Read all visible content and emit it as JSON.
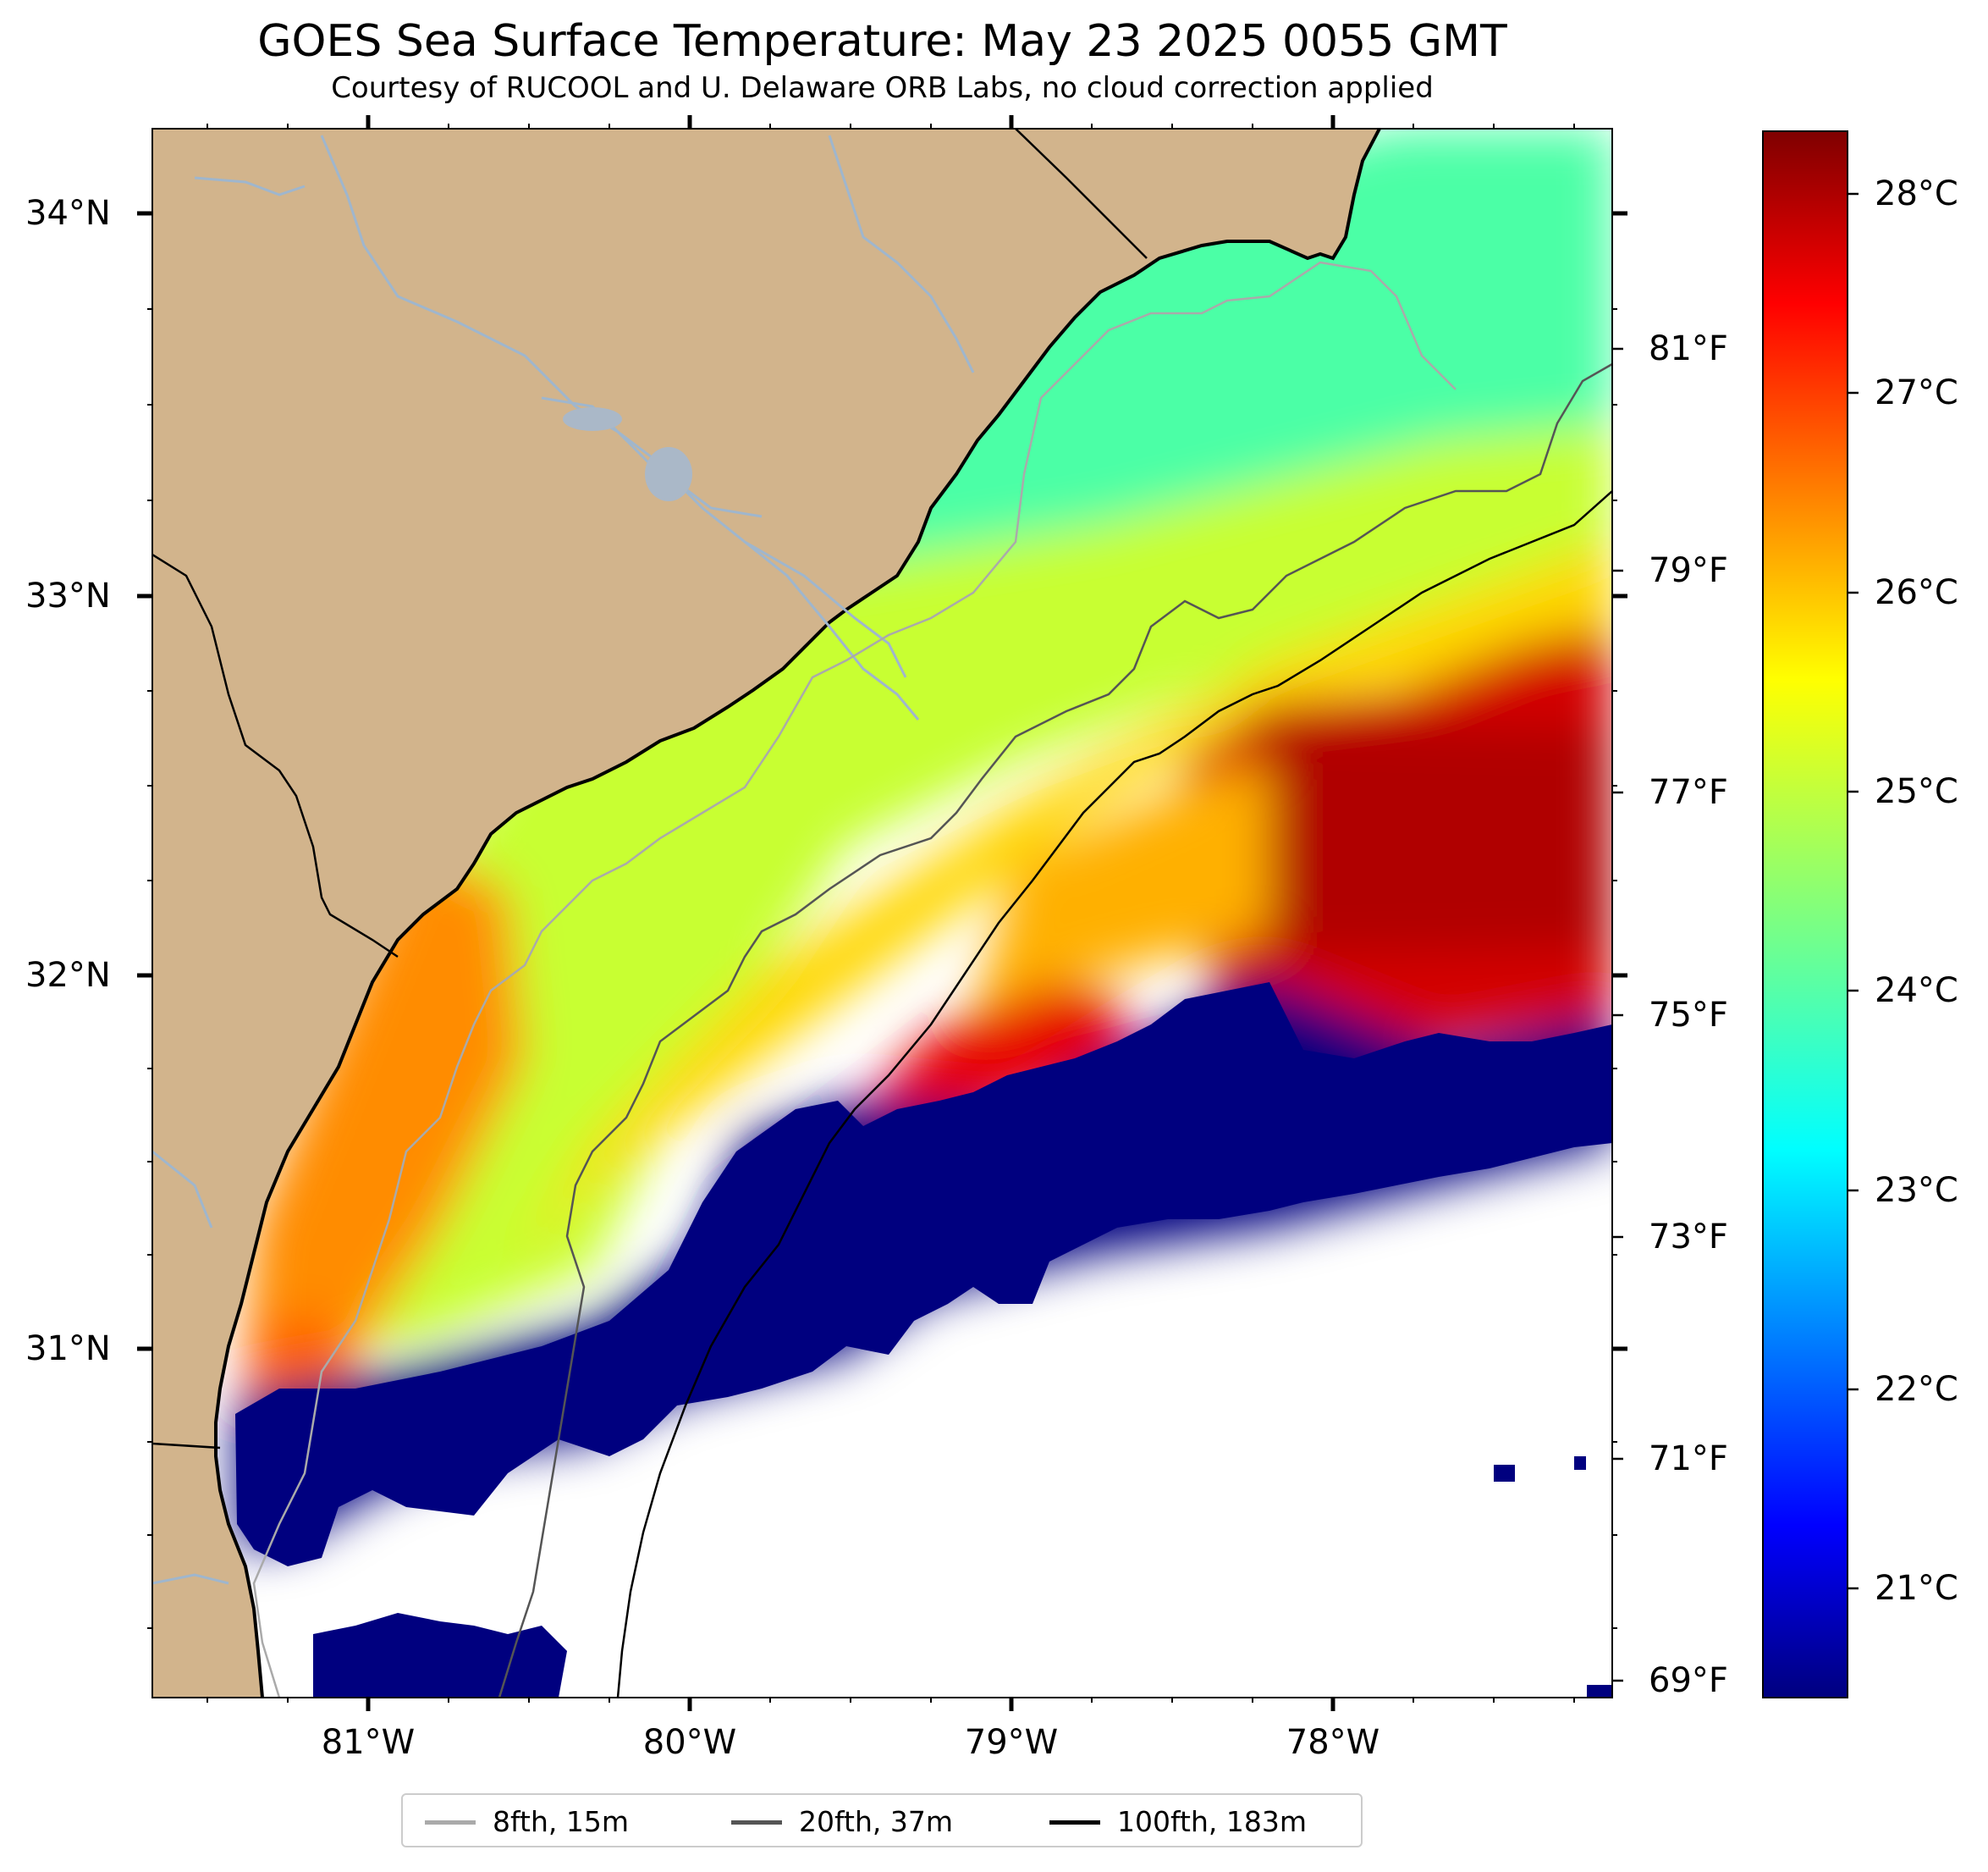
{
  "title": "GOES Sea Surface Temperature: May 23 2025 0055 GMT",
  "subtitle": "Courtesy of RUCOOL and U. Delaware ORB Labs, no cloud correction applied",
  "map": {
    "lat_labels": [
      "34°N",
      "33°N",
      "32°N",
      "31°N"
    ],
    "lon_labels": [
      "81°W",
      "80°W",
      "79°W",
      "78°W"
    ]
  },
  "colorbar": {
    "colormap": "jet",
    "celsius_labels": [
      "28°C",
      "27°C",
      "26°C",
      "25°C",
      "24°C",
      "23°C",
      "22°C",
      "21°C"
    ],
    "fahrenheit_labels": [
      "81°F",
      "79°F",
      "77°F",
      "75°F",
      "73°F",
      "71°F",
      "69°F"
    ]
  },
  "legend": [
    {
      "label": "8fth, 15m",
      "color": "#aaaaaa"
    },
    {
      "label": "20fth, 37m",
      "color": "#555555"
    },
    {
      "label": "100fth, 183m",
      "color": "#000000"
    }
  ],
  "colors": {
    "land": "#d2b48c",
    "no_data": "#ffffff",
    "cold": "#00007f",
    "hot": "#7f0000"
  }
}
